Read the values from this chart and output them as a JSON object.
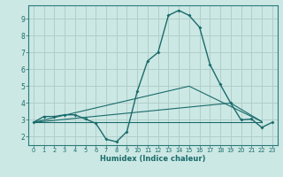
{
  "xlabel": "Humidex (Indice chaleur)",
  "bg_color": "#cce8e4",
  "grid_color": "#b0ceca",
  "line_color": "#1a6b6b",
  "spine_color": "#2a7a7a",
  "xlim": [
    -0.5,
    23.5
  ],
  "ylim": [
    1.5,
    9.8
  ],
  "yticks": [
    2,
    3,
    4,
    5,
    6,
    7,
    8,
    9
  ],
  "xticks": [
    0,
    1,
    2,
    3,
    4,
    5,
    6,
    7,
    8,
    9,
    10,
    11,
    12,
    13,
    14,
    15,
    16,
    17,
    18,
    19,
    20,
    21,
    22,
    23
  ],
  "main_series": {
    "x": [
      0,
      1,
      2,
      3,
      4,
      5,
      6,
      7,
      8,
      9,
      10,
      11,
      12,
      13,
      14,
      15,
      16,
      17,
      18,
      19,
      20,
      21,
      22,
      23
    ],
    "y": [
      2.85,
      3.2,
      3.2,
      3.3,
      3.3,
      3.05,
      2.8,
      1.85,
      1.7,
      2.3,
      4.7,
      6.5,
      7.0,
      9.2,
      9.5,
      9.2,
      8.5,
      6.3,
      5.1,
      4.0,
      3.0,
      3.05,
      2.55,
      2.85
    ]
  },
  "straight_lines": [
    {
      "x": [
        0,
        22
      ],
      "y": [
        2.85,
        2.85
      ]
    },
    {
      "x": [
        0,
        15,
        22
      ],
      "y": [
        2.85,
        5.0,
        2.9
      ]
    },
    {
      "x": [
        0,
        19,
        22
      ],
      "y": [
        2.85,
        4.0,
        2.9
      ]
    }
  ]
}
